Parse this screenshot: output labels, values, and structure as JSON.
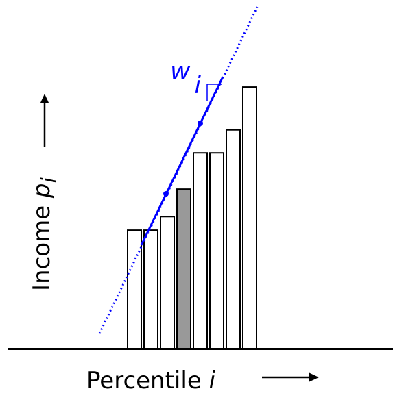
{
  "x_axis_label": {
    "text": "Percentile ",
    "variable": "i"
  },
  "y_axis_label": {
    "text": "Income ",
    "variable": "p",
    "subscript": "i"
  },
  "slope_label": {
    "variable": "w",
    "subscript": "i"
  },
  "colors": {
    "bar_fill": "#ffffff",
    "highlighted_bar_fill": "#999999",
    "bar_stroke": "#000000",
    "line": "#0000ff",
    "text": "#000000"
  },
  "bars": {
    "relative_heights": [
      0.392,
      0.392,
      0.437,
      0.528,
      0.648,
      0.648,
      0.724,
      0.866
    ],
    "highlighted_index": 3
  }
}
